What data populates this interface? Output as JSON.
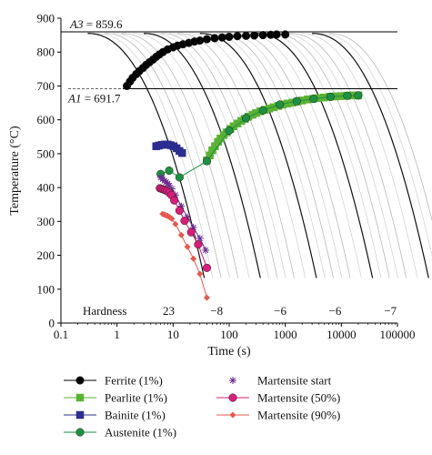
{
  "chart_data": {
    "type": "scatter",
    "xscale": "log",
    "xlim": [
      0.1,
      100000
    ],
    "ylim": [
      0,
      900
    ],
    "xlabel": "Time (s)",
    "ylabel": "Temperature (°C)",
    "x_ticks": [
      "0.1",
      "1",
      "10",
      "100",
      "1000",
      "10000",
      "100000"
    ],
    "y_ticks": [
      "0",
      "100",
      "200",
      "300",
      "400",
      "500",
      "600",
      "700",
      "800",
      "900"
    ],
    "lines": {
      "A3": {
        "value": 859.6,
        "label_var": "A3",
        "label_val": " = 859.6"
      },
      "A1": {
        "value": 691.7,
        "label_var": "A1",
        "label_val": " = 691.7"
      }
    },
    "hardness_label": "Hardness",
    "hardness_values": [
      {
        "text": "23",
        "x": 6.8
      },
      {
        "text": "−8",
        "x": 48
      },
      {
        "text": "−6",
        "x": 650
      },
      {
        "text": "−6",
        "x": 6200
      },
      {
        "text": "−7",
        "x": 60000
      }
    ],
    "cooling_curve_starts": [
      0.3,
      0.6,
      1.2,
      3.0,
      6.0,
      12,
      30,
      60,
      120,
      300,
      600,
      1200,
      3000,
      6000
    ],
    "bold_curve_starts": [
      0.3,
      3.0,
      30,
      300,
      3000
    ],
    "series": [
      {
        "name": "Ferrite (1%)",
        "marker": "circle",
        "color": "#000000",
        "points": [
          [
            1.5,
            700
          ],
          [
            1.7,
            713
          ],
          [
            1.9,
            724
          ],
          [
            2.2,
            735
          ],
          [
            2.5,
            744
          ],
          [
            2.9,
            753
          ],
          [
            3.3,
            762
          ],
          [
            3.8,
            770
          ],
          [
            4.4,
            778
          ],
          [
            5.0,
            786
          ],
          [
            5.7,
            793
          ],
          [
            6.6,
            800
          ],
          [
            8.0,
            808
          ],
          [
            10,
            814
          ],
          [
            12,
            819
          ],
          [
            15,
            823
          ],
          [
            19,
            827
          ],
          [
            24,
            831
          ],
          [
            30,
            834
          ],
          [
            40,
            838
          ],
          [
            55,
            841
          ],
          [
            75,
            843
          ],
          [
            100,
            845
          ],
          [
            140,
            847
          ],
          [
            200,
            848
          ],
          [
            280,
            849
          ],
          [
            400,
            850
          ],
          [
            550,
            851
          ],
          [
            700,
            852
          ],
          [
            1000,
            852
          ]
        ]
      },
      {
        "name": "Pearlite (1%)",
        "marker": "square",
        "color": "#5ab133",
        "points": [
          [
            40,
            480
          ],
          [
            45,
            495
          ],
          [
            50,
            510
          ],
          [
            56,
            522
          ],
          [
            63,
            535
          ],
          [
            70,
            545
          ],
          [
            80,
            555
          ],
          [
            90,
            563
          ],
          [
            105,
            573
          ],
          [
            120,
            581
          ],
          [
            140,
            589
          ],
          [
            165,
            597
          ],
          [
            190,
            603
          ],
          [
            220,
            609
          ],
          [
            260,
            615
          ],
          [
            300,
            620
          ],
          [
            360,
            625
          ],
          [
            430,
            629
          ],
          [
            520,
            633
          ],
          [
            620,
            637
          ],
          [
            750,
            641
          ],
          [
            900,
            645
          ],
          [
            1100,
            648
          ],
          [
            1350,
            651
          ],
          [
            1650,
            654
          ],
          [
            2000,
            657
          ],
          [
            2500,
            660
          ],
          [
            3100,
            662
          ],
          [
            3900,
            664
          ],
          [
            4900,
            666
          ],
          [
            6200,
            668
          ],
          [
            7800,
            669
          ],
          [
            9800,
            670
          ],
          [
            12500,
            671
          ],
          [
            16000,
            672
          ],
          [
            20000,
            672
          ]
        ]
      },
      {
        "name": "Bainite (1%)",
        "marker": "square",
        "color": "#2b2d8f",
        "points": [
          [
            5.0,
            522
          ],
          [
            5.6,
            524
          ],
          [
            6.3,
            526
          ],
          [
            7.1,
            527
          ],
          [
            8.0,
            527
          ],
          [
            9.0,
            525
          ],
          [
            10.2,
            522
          ],
          [
            11.5,
            516
          ],
          [
            13.0,
            508
          ],
          [
            14.5,
            502
          ]
        ]
      },
      {
        "name": "Austenite (1%)",
        "marker": "circle",
        "color": "#1c9142",
        "points": [
          [
            6.0,
            440
          ],
          [
            8.5,
            450
          ],
          [
            13,
            430
          ],
          [
            40,
            478
          ],
          [
            100,
            568
          ],
          [
            200,
            605
          ],
          [
            400,
            628
          ],
          [
            800,
            645
          ],
          [
            1600,
            655
          ],
          [
            3200,
            662
          ],
          [
            6400,
            668
          ],
          [
            12800,
            671
          ],
          [
            20000,
            672
          ]
        ]
      },
      {
        "name": "Martensite start",
        "marker": "star",
        "color": "#6b2b8f",
        "points": [
          [
            6.0,
            430
          ],
          [
            6.5,
            425
          ],
          [
            7.0,
            420
          ],
          [
            7.5,
            416
          ],
          [
            8.0,
            412
          ],
          [
            8.6,
            406
          ],
          [
            9.5,
            396
          ],
          [
            11,
            378
          ],
          [
            14,
            345
          ],
          [
            18,
            312
          ],
          [
            23,
            282
          ],
          [
            30,
            250
          ],
          [
            38,
            215
          ]
        ]
      },
      {
        "name": "Martensite (50%)",
        "marker": "circle",
        "color": "#d91d7a",
        "points": [
          [
            5.8,
            398
          ],
          [
            6.3,
            396
          ],
          [
            6.8,
            394
          ],
          [
            7.3,
            392
          ],
          [
            7.8,
            390
          ],
          [
            8.5,
            385
          ],
          [
            9.3,
            378
          ],
          [
            10.5,
            362
          ],
          [
            13,
            332
          ],
          [
            16,
            302
          ],
          [
            21,
            268
          ],
          [
            28,
            232
          ],
          [
            40,
            163
          ]
        ]
      },
      {
        "name": "Martensite (90%)",
        "marker": "diamond",
        "color": "#e5584f",
        "points": [
          [
            6.5,
            322
          ],
          [
            7.0,
            320
          ],
          [
            7.5,
            318
          ],
          [
            8.0,
            316
          ],
          [
            8.6,
            313
          ],
          [
            9.5,
            308
          ],
          [
            11,
            292
          ],
          [
            14,
            260
          ],
          [
            18,
            225
          ],
          [
            23,
            190
          ],
          [
            30,
            145
          ],
          [
            40,
            75
          ]
        ]
      }
    ],
    "legend_placement": "bottom"
  }
}
